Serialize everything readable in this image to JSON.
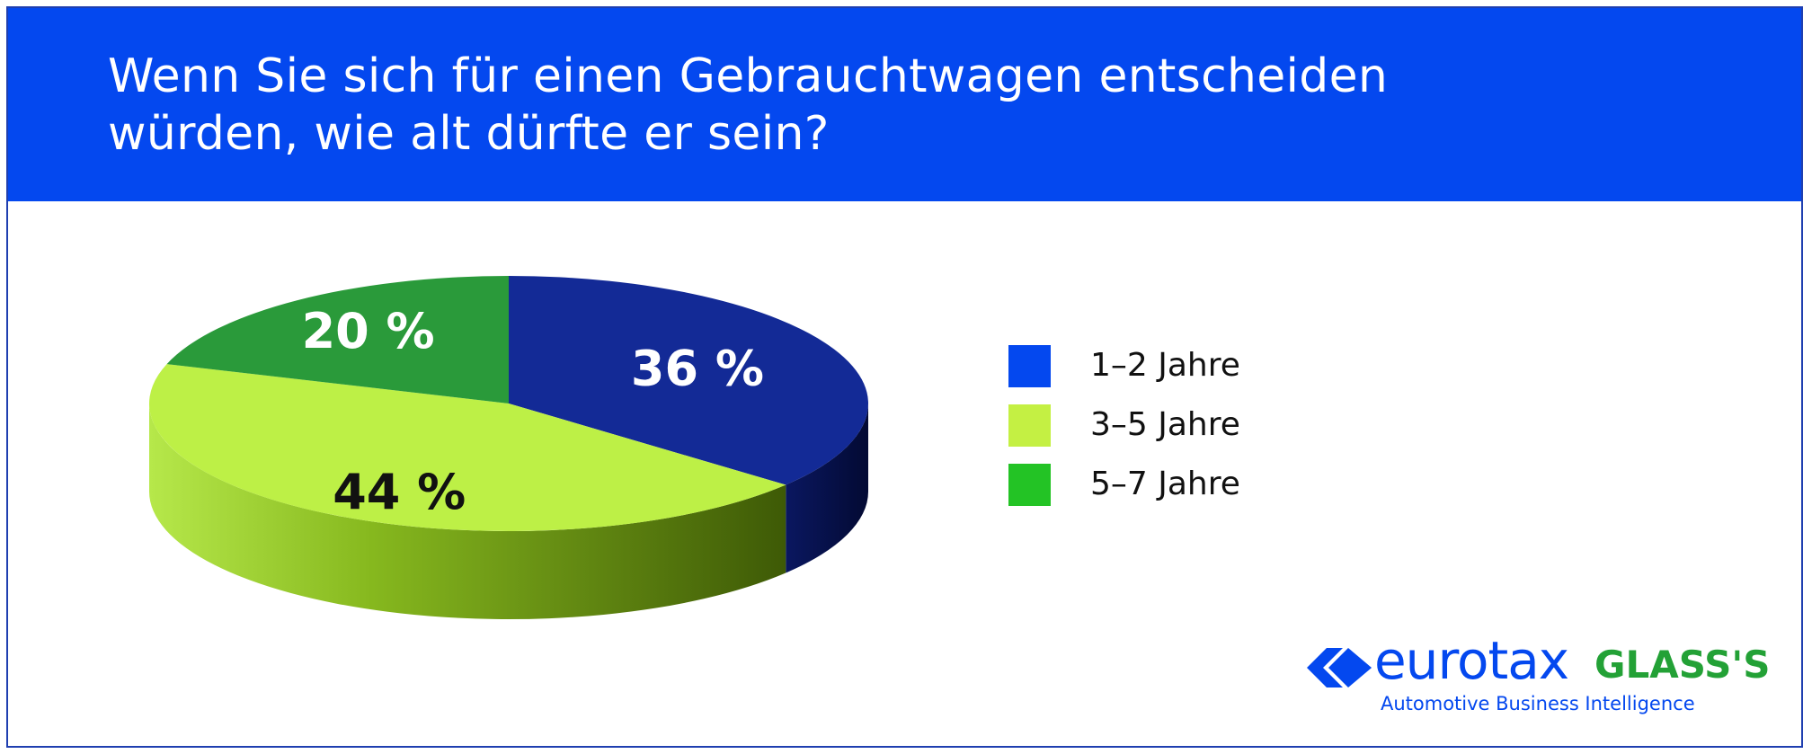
{
  "title": {
    "line1": "Wenn Sie sich für einen Gebrauchtwagen entscheiden",
    "line2": "würden, wie alt dürfte er sein?"
  },
  "chart_data": {
    "type": "pie",
    "categories": [
      "1–2 Jahre",
      "3–5 Jahre",
      "5–7 Jahre"
    ],
    "values": [
      36,
      44,
      20
    ],
    "value_labels": [
      "36 %",
      "44 %",
      "20 %"
    ],
    "colors": [
      "#132a96",
      "#bdf046",
      "#2a9a3a"
    ],
    "label_colors": [
      "#ffffff",
      "#111111",
      "#ffffff"
    ],
    "legend_colors": [
      "#0448ef",
      "#c4f043",
      "#23c325"
    ],
    "legend_position": "right",
    "style": "3d"
  },
  "logo": {
    "wordmark_a": "eurotax",
    "wordmark_b": "GLASS'S",
    "tagline": "Automotive Business Intelligence"
  },
  "colors": {
    "header": "#0448ef",
    "border": "#1f3fb0"
  }
}
